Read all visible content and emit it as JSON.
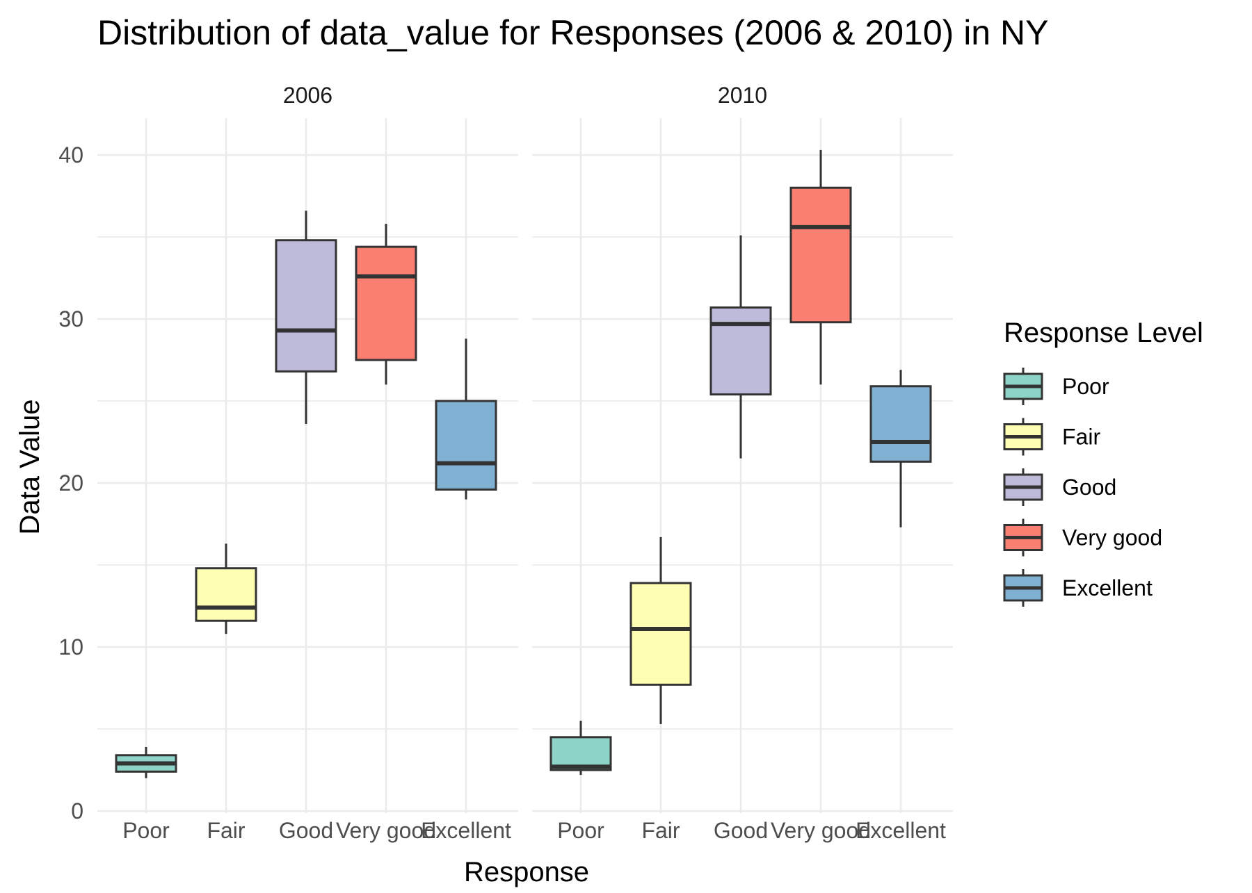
{
  "chart_data": {
    "type": "boxplot",
    "title": "Distribution of data_value for Responses (2006 & 2010) in NY",
    "xlabel": "Response",
    "ylabel": "Data Value",
    "ylim": [
      0,
      42
    ],
    "y_ticks": [
      0,
      10,
      20,
      30,
      40
    ],
    "grid": true,
    "categories": [
      "Poor",
      "Fair",
      "Good",
      "Very good",
      "Excellent"
    ],
    "legend": {
      "title": "Response Level",
      "position": "right",
      "items": [
        {
          "label": "Poor",
          "color": "#8DD3C7"
        },
        {
          "label": "Fair",
          "color": "#FFFFB3"
        },
        {
          "label": "Good",
          "color": "#BEBADA"
        },
        {
          "label": "Very good",
          "color": "#FB8072"
        },
        {
          "label": "Excellent",
          "color": "#80B1D3"
        }
      ]
    },
    "panels": [
      {
        "label": "2006",
        "boxes": [
          {
            "category": "Poor",
            "whisker_low": 2.0,
            "q1": 2.4,
            "median": 2.9,
            "q3": 3.4,
            "whisker_high": 3.9
          },
          {
            "category": "Fair",
            "whisker_low": 10.8,
            "q1": 11.6,
            "median": 12.4,
            "q3": 14.8,
            "whisker_high": 16.3
          },
          {
            "category": "Good",
            "whisker_low": 23.6,
            "q1": 26.8,
            "median": 29.3,
            "q3": 34.8,
            "whisker_high": 36.6
          },
          {
            "category": "Very good",
            "whisker_low": 26.0,
            "q1": 27.5,
            "median": 32.6,
            "q3": 34.4,
            "whisker_high": 35.8
          },
          {
            "category": "Excellent",
            "whisker_low": 19.0,
            "q1": 19.6,
            "median": 21.2,
            "q3": 25.0,
            "whisker_high": 28.8
          }
        ]
      },
      {
        "label": "2010",
        "boxes": [
          {
            "category": "Poor",
            "whisker_low": 2.2,
            "q1": 2.5,
            "median": 2.7,
            "q3": 4.5,
            "whisker_high": 5.5
          },
          {
            "category": "Fair",
            "whisker_low": 5.3,
            "q1": 7.7,
            "median": 11.1,
            "q3": 13.9,
            "whisker_high": 16.7
          },
          {
            "category": "Good",
            "whisker_low": 21.5,
            "q1": 25.4,
            "median": 29.7,
            "q3": 30.7,
            "whisker_high": 35.1
          },
          {
            "category": "Very good",
            "whisker_low": 26.0,
            "q1": 29.8,
            "median": 35.6,
            "q3": 38.0,
            "whisker_high": 40.3
          },
          {
            "category": "Excellent",
            "whisker_low": 17.3,
            "q1": 21.3,
            "median": 22.5,
            "q3": 25.9,
            "whisker_high": 26.9
          }
        ]
      }
    ]
  }
}
